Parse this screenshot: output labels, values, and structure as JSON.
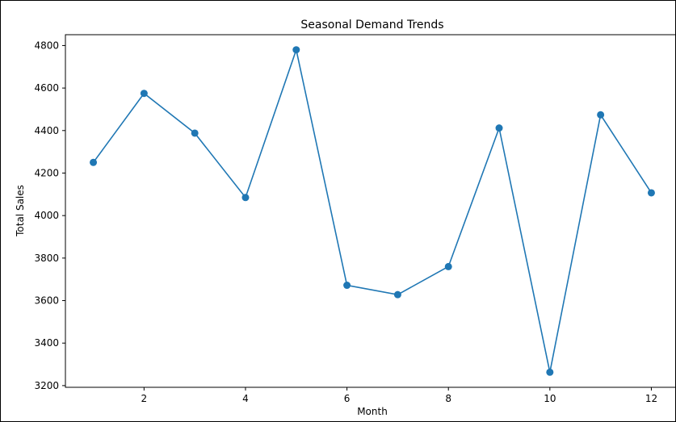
{
  "chart_data": {
    "type": "line",
    "title": "Seasonal Demand Trends",
    "xlabel": "Month",
    "ylabel": "Total Sales",
    "x": [
      1,
      2,
      3,
      4,
      5,
      6,
      7,
      8,
      9,
      10,
      11,
      12
    ],
    "series": [
      {
        "values": [
          4250,
          4575,
          4388,
          4085,
          4780,
          3672,
          3628,
          3760,
          4412,
          3263,
          4474,
          4107
        ],
        "color": "#1f77b4",
        "marker": "circle"
      }
    ],
    "xlim": [
      0.45,
      12.55
    ],
    "ylim": [
      3192,
      4851
    ],
    "xticks": [
      2,
      4,
      6,
      8,
      10,
      12
    ],
    "yticks": [
      3200,
      3400,
      3600,
      3800,
      4000,
      4200,
      4400,
      4600,
      4800
    ],
    "grid": false,
    "legend": "none"
  }
}
